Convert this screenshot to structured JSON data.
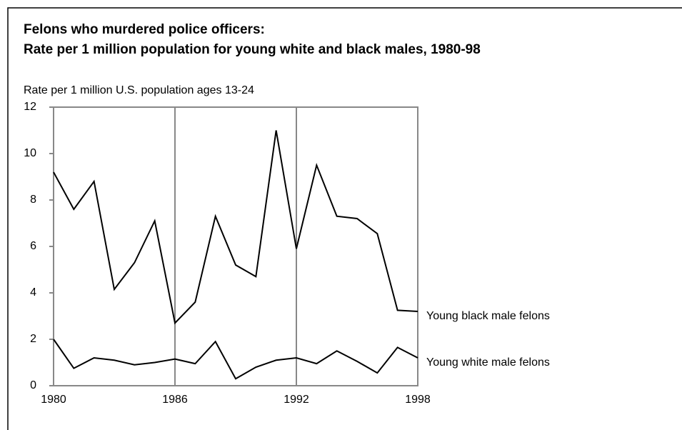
{
  "chart_data": {
    "type": "line",
    "title": "Felons who murdered police officers:",
    "subtitle": "Rate per 1 million population for young white and black males, 1980-98",
    "y_label": "Rate per 1 million U.S. population ages 13-24",
    "x": [
      1980,
      1981,
      1982,
      1983,
      1984,
      1985,
      1986,
      1987,
      1988,
      1989,
      1990,
      1991,
      1992,
      1993,
      1994,
      1995,
      1996,
      1997,
      1998
    ],
    "series": [
      {
        "name": "Young black male felons",
        "color": "#000000",
        "values": [
          9.2,
          7.6,
          8.8,
          4.15,
          5.3,
          7.1,
          2.7,
          3.6,
          7.3,
          5.2,
          4.7,
          11.0,
          5.9,
          9.5,
          7.3,
          7.2,
          6.55,
          3.25,
          3.2
        ]
      },
      {
        "name": "Young white male felons",
        "color": "#000000",
        "values": [
          2.0,
          0.75,
          1.2,
          1.1,
          0.9,
          1.0,
          1.15,
          0.95,
          1.9,
          0.3,
          0.8,
          1.1,
          1.2,
          0.95,
          1.5,
          1.05,
          0.55,
          1.65,
          1.2
        ]
      }
    ],
    "xlim": [
      1980,
      1998
    ],
    "xticks": [
      1980,
      1986,
      1992,
      1998
    ],
    "ylim": [
      0,
      12
    ],
    "yticks": [
      0,
      2,
      4,
      6,
      8,
      10,
      12
    ],
    "grid": true
  }
}
